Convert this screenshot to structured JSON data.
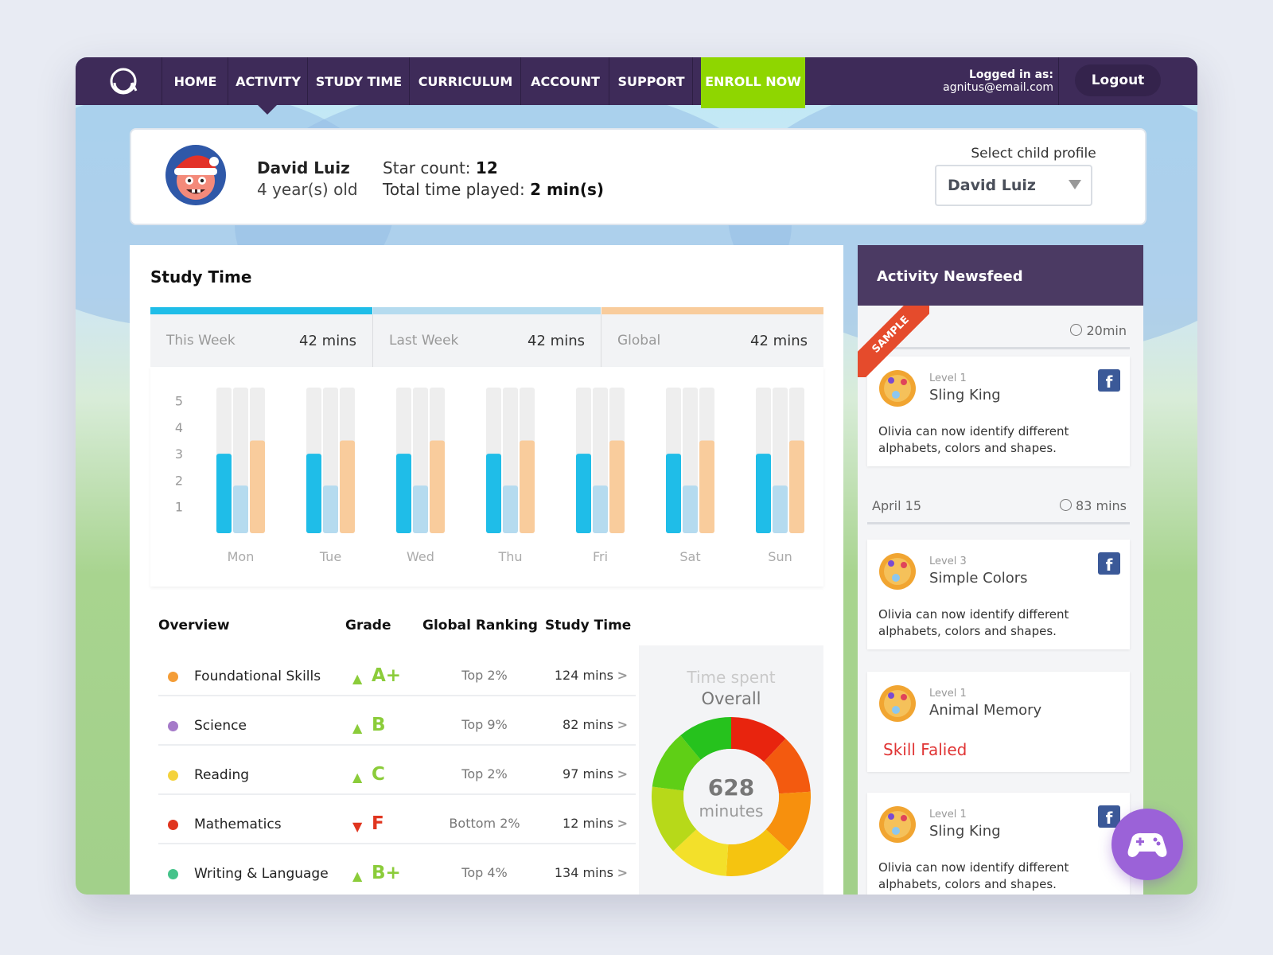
{
  "nav": {
    "items": [
      "HOME",
      "ACTIVITY",
      "STUDY TIME",
      "CURRICULUM",
      "ACCOUNT",
      "SUPPORT",
      "ENROLL NOW"
    ],
    "logged_in_label": "Logged in as:",
    "email": "agnitus@email.com",
    "logout": "Logout"
  },
  "profile": {
    "name": "David Luiz",
    "age": "4 year(s) old",
    "star_label": "Star count: ",
    "star_value": "12",
    "time_label": "Total time played: ",
    "time_value": "2 min(s)",
    "select_label": "Select child profile",
    "select_value": "David Luiz"
  },
  "study": {
    "title": "Study Time",
    "tabs": [
      {
        "label": "This Week",
        "value": "42 mins",
        "color": "#1fbde8"
      },
      {
        "label": "Last Week",
        "value": "42 mins",
        "color": "#b5dbef"
      },
      {
        "label": "Global",
        "value": "42 mins",
        "color": "#f9cc9c"
      }
    ]
  },
  "chart_data": {
    "type": "bar",
    "categories": [
      "Mon",
      "Tue",
      "Wed",
      "Thu",
      "Fri",
      "Sat",
      "Sun"
    ],
    "series": [
      {
        "name": "This Week",
        "color": "#1fbde8",
        "values": [
          3,
          3,
          3,
          3,
          3,
          3,
          3
        ]
      },
      {
        "name": "Last Week",
        "color": "#b5dbef",
        "values": [
          1.8,
          1.8,
          1.8,
          1.8,
          1.8,
          1.8,
          1.8
        ]
      },
      {
        "name": "Global",
        "color": "#f9cc9c",
        "values": [
          3.5,
          3.5,
          3.5,
          3.5,
          3.5,
          3.5,
          3.5
        ]
      }
    ],
    "yticks": [
      1,
      2,
      3,
      4,
      5
    ],
    "ylim": [
      0,
      5.5
    ],
    "track_color": "#eeeeee",
    "title": "",
    "xlabel": "",
    "ylabel": ""
  },
  "overview": {
    "headers": {
      "subject": "Overview",
      "grade": "Grade",
      "ranking": "Global Ranking",
      "time": "Study Time"
    },
    "rows": [
      {
        "name": "Foundational Skills",
        "dot": "#f49d37",
        "trend": "▲",
        "trend_color": "#8bcc3a",
        "grade": "A+",
        "grade_color": "#8bcc3a",
        "ranking": "Top 2%",
        "time": "124 mins"
      },
      {
        "name": "Science",
        "dot": "#a57ac9",
        "trend": "▲",
        "trend_color": "#8bcc3a",
        "grade": "B",
        "grade_color": "#8bcc3a",
        "ranking": "Top 9%",
        "time": "82 mins"
      },
      {
        "name": "Reading",
        "dot": "#f4d23c",
        "trend": "▲",
        "trend_color": "#8bcc3a",
        "grade": "C",
        "grade_color": "#8bcc3a",
        "ranking": "Top 2%",
        "time": "97 mins"
      },
      {
        "name": "Mathematics",
        "dot": "#e0351f",
        "trend": "▼",
        "trend_color": "#e0351f",
        "grade": "F",
        "grade_color": "#e0351f",
        "ranking": "Bottom 2%",
        "time": "12 mins"
      },
      {
        "name": "Writing & Language",
        "dot": "#45c38a",
        "trend": "▲",
        "trend_color": "#8bcc3a",
        "grade": "B+",
        "grade_color": "#8bcc3a",
        "ranking": "Top 4%",
        "time": "134 mins"
      }
    ],
    "donut": {
      "label1": "Time spent",
      "label2": "Overall",
      "value": "628",
      "unit": "minutes",
      "segments": [
        {
          "color": "#e8240e",
          "value": 12
        },
        {
          "color": "#f35a0f",
          "value": 12
        },
        {
          "color": "#f7900d",
          "value": 13
        },
        {
          "color": "#f5c410",
          "value": 14
        },
        {
          "color": "#f3e02a",
          "value": 12
        },
        {
          "color": "#b7d919",
          "value": 14
        },
        {
          "color": "#5fcf16",
          "value": 12
        },
        {
          "color": "#26c21d",
          "value": 11
        }
      ]
    }
  },
  "feed": {
    "title": "Activity Newsfeed",
    "sample": "SAMPLE",
    "groups": [
      {
        "date": "",
        "duration": "20min"
      },
      {
        "date": "April 15",
        "duration": "83 mins"
      }
    ],
    "cards": [
      {
        "level": "Level 1",
        "title": "Sling King",
        "text": "Olivia can now identify different alphabets, colors and shapes."
      },
      {
        "level": "Level 3",
        "title": "Simple Colors",
        "text": "Olivia can now identify different alphabets, colors and shapes."
      },
      {
        "level": "Level 1",
        "title": "Animal Memory",
        "fail": "Skill Falied"
      },
      {
        "level": "Level 1",
        "title": "Sling King",
        "text": "Olivia can now identify different alphabets, colors and shapes."
      }
    ],
    "fb_icon": "f"
  }
}
